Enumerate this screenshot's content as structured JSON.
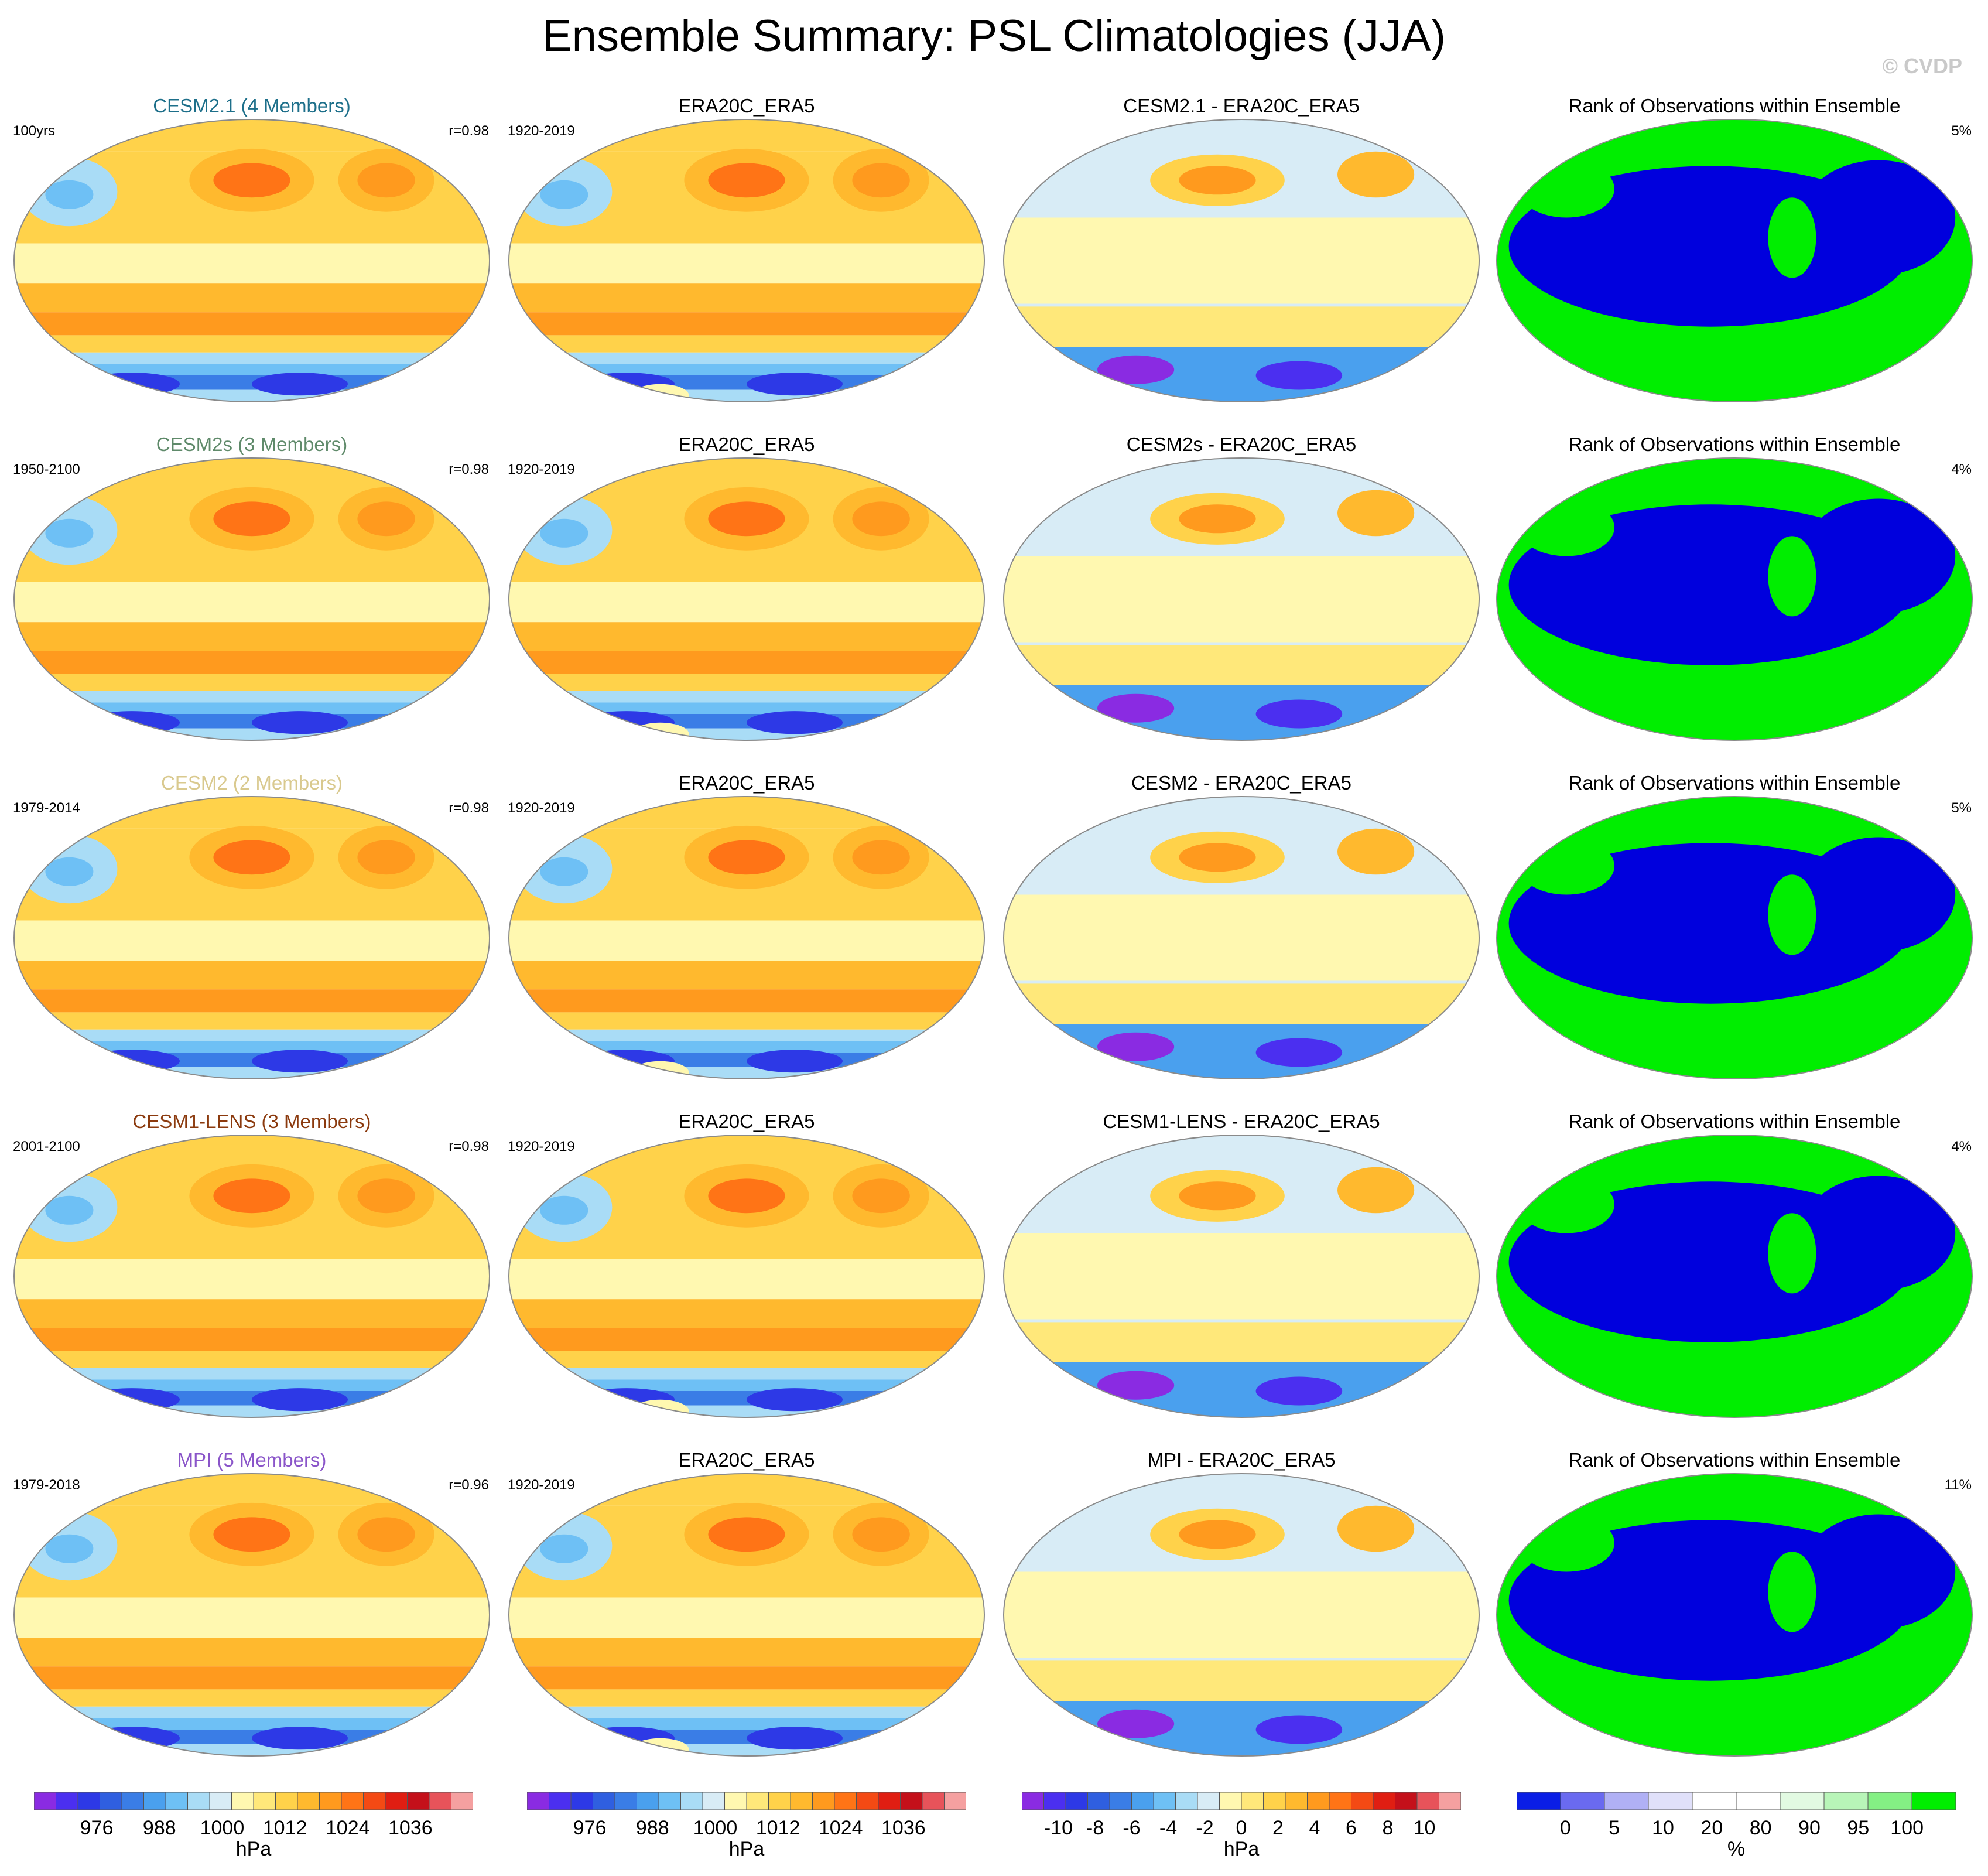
{
  "title": "Ensemble Summary: PSL Climatologies (JJA)",
  "watermark": "© CVDP",
  "rows": [
    {
      "model": {
        "title": "CESM2.1 (4 Members)",
        "color": "#1d6f8a",
        "period": "100yrs",
        "r": "r=0.98"
      },
      "obs": {
        "title": "ERA20C_ERA5",
        "period": "1920-2019"
      },
      "diff": {
        "title": "CESM2.1 - ERA20C_ERA5"
      },
      "rank": {
        "title": "Rank of Observations within Ensemble",
        "pct": "5%"
      }
    },
    {
      "model": {
        "title": "CESM2s (3 Members)",
        "color": "#5f8a6a",
        "period": "1950-2100",
        "r": "r=0.98"
      },
      "obs": {
        "title": "ERA20C_ERA5",
        "period": "1920-2019"
      },
      "diff": {
        "title": "CESM2s - ERA20C_ERA5"
      },
      "rank": {
        "title": "Rank of Observations within Ensemble",
        "pct": "4%"
      }
    },
    {
      "model": {
        "title": "CESM2 (2 Members)",
        "color": "#d9c98e",
        "period": "1979-2014",
        "r": "r=0.98"
      },
      "obs": {
        "title": "ERA20C_ERA5",
        "period": "1920-2019"
      },
      "diff": {
        "title": "CESM2 - ERA20C_ERA5"
      },
      "rank": {
        "title": "Rank of Observations within Ensemble",
        "pct": "5%"
      }
    },
    {
      "model": {
        "title": "CESM1-LENS (3 Members)",
        "color": "#8b3a0e",
        "period": "2001-2100",
        "r": "r=0.98"
      },
      "obs": {
        "title": "ERA20C_ERA5",
        "period": "1920-2019"
      },
      "diff": {
        "title": "CESM1-LENS - ERA20C_ERA5"
      },
      "rank": {
        "title": "Rank of Observations within Ensemble",
        "pct": "4%"
      }
    },
    {
      "model": {
        "title": "MPI (5 Members)",
        "color": "#8a55c9",
        "period": "1979-2018",
        "r": "r=0.96"
      },
      "obs": {
        "title": "ERA20C_ERA5",
        "period": "1920-2019"
      },
      "diff": {
        "title": "MPI - ERA20C_ERA5"
      },
      "rank": {
        "title": "Rank of Observations within Ensemble",
        "pct": "11%"
      }
    }
  ],
  "colorbars": [
    {
      "unit": "hPa",
      "ticks": [
        "976",
        "988",
        "1000",
        "1012",
        "1024",
        "1036"
      ],
      "colors": [
        "#8a2be2",
        "#4b2ff0",
        "#2d39e6",
        "#2f5fe0",
        "#3a7de6",
        "#4aa0ee",
        "#6ec0f5",
        "#a9dcf6",
        "#d8ecf6",
        "#fff8b0",
        "#ffe87a",
        "#ffd24a",
        "#ffb92e",
        "#ff9a1e",
        "#ff7416",
        "#f44a14",
        "#e01e12",
        "#c4101a",
        "#e7535a",
        "#f5a0a0"
      ]
    },
    {
      "unit": "hPa",
      "ticks": [
        "976",
        "988",
        "1000",
        "1012",
        "1024",
        "1036"
      ],
      "colors": [
        "#8a2be2",
        "#4b2ff0",
        "#2d39e6",
        "#2f5fe0",
        "#3a7de6",
        "#4aa0ee",
        "#6ec0f5",
        "#a9dcf6",
        "#d8ecf6",
        "#fff8b0",
        "#ffe87a",
        "#ffd24a",
        "#ffb92e",
        "#ff9a1e",
        "#ff7416",
        "#f44a14",
        "#e01e12",
        "#c4101a",
        "#e7535a",
        "#f5a0a0"
      ]
    },
    {
      "unit": "hPa",
      "ticks": [
        "-10",
        "-8",
        "-6",
        "-4",
        "-2",
        "0",
        "2",
        "4",
        "6",
        "8",
        "10"
      ],
      "colors": [
        "#8a2be2",
        "#4b2ff0",
        "#2d39e6",
        "#2f5fe0",
        "#3a7de6",
        "#4aa0ee",
        "#6ec0f5",
        "#a9dcf6",
        "#d8ecf6",
        "#fff8b0",
        "#ffe87a",
        "#ffd24a",
        "#ffb92e",
        "#ff9a1e",
        "#ff7416",
        "#f44a14",
        "#e01e12",
        "#c4101a",
        "#e7535a",
        "#f5a0a0"
      ]
    },
    {
      "unit": "%",
      "ticks": [
        "0",
        "5",
        "10",
        "20",
        "80",
        "90",
        "95",
        "100"
      ],
      "colors": [
        "#0a1ee6",
        "#6a6af0",
        "#b0b0f5",
        "#e0e0fa",
        "#ffffff",
        "#ffffff",
        "#e2fae2",
        "#b8f5b8",
        "#84f084",
        "#00ee00"
      ]
    }
  ],
  "palettes": {
    "ocean_blue": "#0000dd",
    "rank_green": "#00ee00",
    "map_yellow": "#ffd24a",
    "map_orange": "#ff9a1e",
    "map_lightblue": "#a9dcf6",
    "map_blue": "#3a7de6"
  }
}
